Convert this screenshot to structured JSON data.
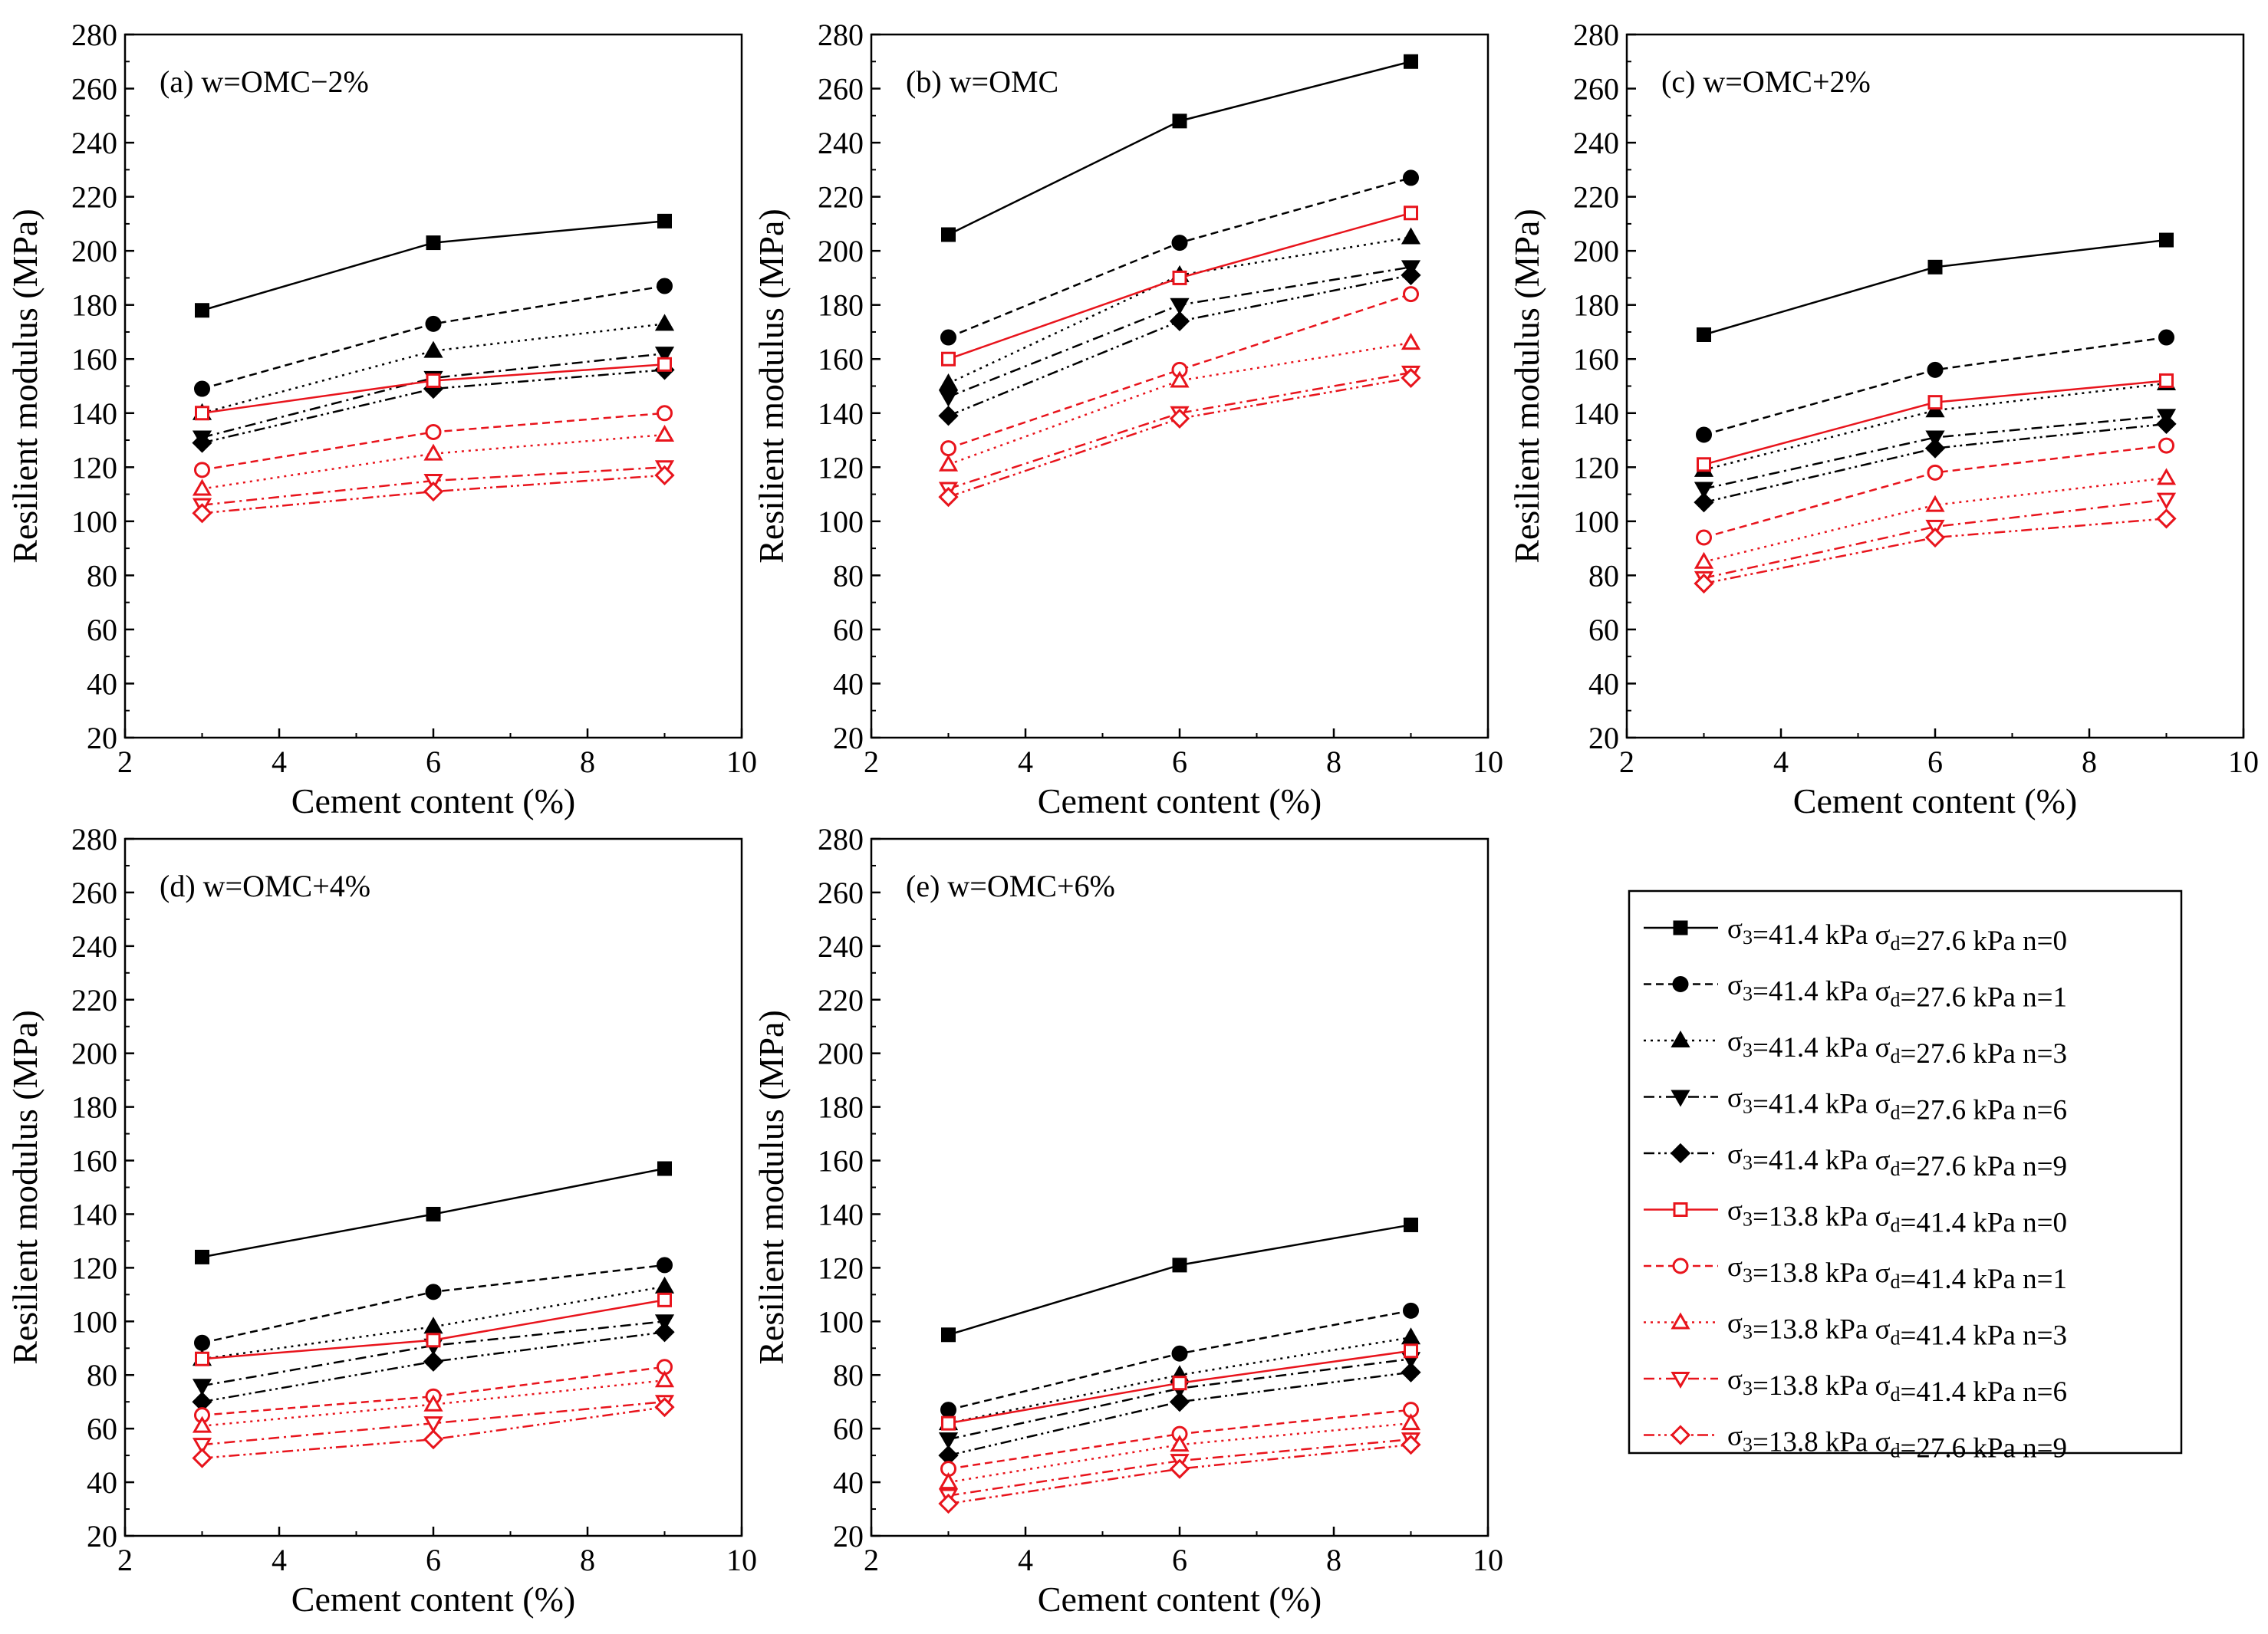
{
  "figure": {
    "xlabel": "Cement content (%)",
    "ylabel": "Resilient modulus (MPa)"
  },
  "legend": {
    "entries": [
      {
        "p1": "σ",
        "s1": "3",
        "p2": "=41.4 kPa  σ",
        "s2": "d",
        "p3": "=27.6 kPa  n=0"
      },
      {
        "p1": "σ",
        "s1": "3",
        "p2": "=41.4 kPa  σ",
        "s2": "d",
        "p3": "=27.6 kPa  n=1"
      },
      {
        "p1": "σ",
        "s1": "3",
        "p2": "=41.4 kPa  σ",
        "s2": "d",
        "p3": "=27.6 kPa  n=3"
      },
      {
        "p1": "σ",
        "s1": "3",
        "p2": "=41.4 kPa  σ",
        "s2": "d",
        "p3": "=27.6 kPa  n=6"
      },
      {
        "p1": "σ",
        "s1": "3",
        "p2": "=41.4 kPa  σ",
        "s2": "d",
        "p3": "=27.6 kPa  n=9"
      },
      {
        "p1": "σ",
        "s1": "3",
        "p2": "=13.8 kPa  σ",
        "s2": "d",
        "p3": "=41.4 kPa  n=0"
      },
      {
        "p1": "σ",
        "s1": "3",
        "p2": "=13.8 kPa  σ",
        "s2": "d",
        "p3": "=41.4 kPa  n=1"
      },
      {
        "p1": "σ",
        "s1": "3",
        "p2": "=13.8 kPa  σ",
        "s2": "d",
        "p3": "=41.4 kPa  n=3"
      },
      {
        "p1": "σ",
        "s1": "3",
        "p2": "=13.8 kPa  σ",
        "s2": "d",
        "p3": "=41.4 kPa  n=6"
      },
      {
        "p1": "σ",
        "s1": "3",
        "p2": "=13.8 kPa  σ",
        "s2": "d",
        "p3": "=27.6 kPa  n=9"
      }
    ]
  },
  "series_style": [
    {
      "color": "#000000",
      "marker": "square",
      "filled": true,
      "dash": "solid"
    },
    {
      "color": "#000000",
      "marker": "circle",
      "filled": true,
      "dash": "dashed"
    },
    {
      "color": "#000000",
      "marker": "triangle-up",
      "filled": true,
      "dash": "dotted"
    },
    {
      "color": "#000000",
      "marker": "triangle-down",
      "filled": true,
      "dash": "dashdot"
    },
    {
      "color": "#000000",
      "marker": "diamond",
      "filled": true,
      "dash": "dashdotdot"
    },
    {
      "color": "#e8141c",
      "marker": "square",
      "filled": false,
      "dash": "solid"
    },
    {
      "color": "#e8141c",
      "marker": "circle",
      "filled": false,
      "dash": "dashed"
    },
    {
      "color": "#e8141c",
      "marker": "triangle-up",
      "filled": false,
      "dash": "dotted"
    },
    {
      "color": "#e8141c",
      "marker": "triangle-down",
      "filled": false,
      "dash": "dashdot"
    },
    {
      "color": "#e8141c",
      "marker": "diamond",
      "filled": false,
      "dash": "dashdotdot"
    }
  ],
  "chart_data": [
    {
      "type": "line",
      "title": "(a) w=OMC−2%",
      "xlabel": "Cement content (%)",
      "ylabel": "Resilient modulus (MPa)",
      "xlim": [
        2,
        10
      ],
      "ylim": [
        20,
        280
      ],
      "xticks": [
        2,
        4,
        6,
        8,
        10
      ],
      "yticks": [
        20,
        40,
        60,
        80,
        100,
        120,
        140,
        160,
        180,
        200,
        220,
        240,
        260,
        280
      ],
      "x": [
        3,
        6,
        9
      ],
      "series": [
        {
          "name": "σ3=41.4 kPa σd=27.6 kPa n=0",
          "values": [
            178,
            203,
            211
          ]
        },
        {
          "name": "σ3=41.4 kPa σd=27.6 kPa n=1",
          "values": [
            149,
            173,
            187
          ]
        },
        {
          "name": "σ3=41.4 kPa σd=27.6 kPa n=3",
          "values": [
            140,
            163,
            173
          ]
        },
        {
          "name": "σ3=41.4 kPa σd=27.6 kPa n=6",
          "values": [
            131,
            153,
            162
          ]
        },
        {
          "name": "σ3=41.4 kPa σd=27.6 kPa n=9",
          "values": [
            129,
            149,
            156
          ]
        },
        {
          "name": "σ3=13.8 kPa σd=41.4 kPa n=0",
          "values": [
            140,
            152,
            158
          ]
        },
        {
          "name": "σ3=13.8 kPa σd=41.4 kPa n=1",
          "values": [
            119,
            133,
            140
          ]
        },
        {
          "name": "σ3=13.8 kPa σd=41.4 kPa n=3",
          "values": [
            112,
            125,
            132
          ]
        },
        {
          "name": "σ3=13.8 kPa σd=41.4 kPa n=6",
          "values": [
            106,
            115,
            120
          ]
        },
        {
          "name": "σ3=13.8 kPa σd=27.6 kPa n=9",
          "values": [
            103,
            111,
            117
          ]
        }
      ]
    },
    {
      "type": "line",
      "title": "(b) w=OMC",
      "xlabel": "Cement content (%)",
      "ylabel": "Resilient modulus (MPa)",
      "xlim": [
        2,
        10
      ],
      "ylim": [
        20,
        280
      ],
      "xticks": [
        2,
        4,
        6,
        8,
        10
      ],
      "yticks": [
        20,
        40,
        60,
        80,
        100,
        120,
        140,
        160,
        180,
        200,
        220,
        240,
        260,
        280
      ],
      "x": [
        3,
        6,
        9
      ],
      "series": [
        {
          "name": "σ3=41.4 kPa σd=27.6 kPa n=0",
          "values": [
            206,
            248,
            270
          ]
        },
        {
          "name": "σ3=41.4 kPa σd=27.6 kPa n=1",
          "values": [
            168,
            203,
            227
          ]
        },
        {
          "name": "σ3=41.4 kPa σd=27.6 kPa n=3",
          "values": [
            151,
            191,
            205
          ]
        },
        {
          "name": "σ3=41.4 kPa σd=27.6 kPa n=6",
          "values": [
            146,
            180,
            194
          ]
        },
        {
          "name": "σ3=41.4 kPa σd=27.6 kPa n=9",
          "values": [
            139,
            174,
            191
          ]
        },
        {
          "name": "σ3=13.8 kPa σd=41.4 kPa n=0",
          "values": [
            160,
            190,
            214
          ]
        },
        {
          "name": "σ3=13.8 kPa σd=41.4 kPa n=1",
          "values": [
            127,
            156,
            184
          ]
        },
        {
          "name": "σ3=13.8 kPa σd=41.4 kPa n=3",
          "values": [
            121,
            152,
            166
          ]
        },
        {
          "name": "σ3=13.8 kPa σd=41.4 kPa n=6",
          "values": [
            112,
            140,
            155
          ]
        },
        {
          "name": "σ3=13.8 kPa σd=27.6 kPa n=9",
          "values": [
            109,
            138,
            153
          ]
        }
      ]
    },
    {
      "type": "line",
      "title": "(c) w=OMC+2%",
      "xlabel": "Cement content (%)",
      "ylabel": "Resilient modulus (MPa)",
      "xlim": [
        2,
        10
      ],
      "ylim": [
        20,
        280
      ],
      "xticks": [
        2,
        4,
        6,
        8,
        10
      ],
      "yticks": [
        20,
        40,
        60,
        80,
        100,
        120,
        140,
        160,
        180,
        200,
        220,
        240,
        260,
        280
      ],
      "x": [
        3,
        6,
        9
      ],
      "series": [
        {
          "name": "σ3=41.4 kPa σd=27.6 kPa n=0",
          "values": [
            169,
            194,
            204
          ]
        },
        {
          "name": "σ3=41.4 kPa σd=27.6 kPa n=1",
          "values": [
            132,
            156,
            168
          ]
        },
        {
          "name": "σ3=41.4 kPa σd=27.6 kPa n=3",
          "values": [
            119,
            141,
            151
          ]
        },
        {
          "name": "σ3=41.4 kPa σd=27.6 kPa n=6",
          "values": [
            112,
            131,
            139
          ]
        },
        {
          "name": "σ3=41.4 kPa σd=27.6 kPa n=9",
          "values": [
            107,
            127,
            136
          ]
        },
        {
          "name": "σ3=13.8 kPa σd=41.4 kPa n=0",
          "values": [
            121,
            144,
            152
          ]
        },
        {
          "name": "σ3=13.8 kPa σd=41.4 kPa n=1",
          "values": [
            94,
            118,
            128
          ]
        },
        {
          "name": "σ3=13.8 kPa σd=41.4 kPa n=3",
          "values": [
            85,
            106,
            116
          ]
        },
        {
          "name": "σ3=13.8 kPa σd=41.4 kPa n=6",
          "values": [
            79,
            98,
            108
          ]
        },
        {
          "name": "σ3=13.8 kPa σd=27.6 kPa n=9",
          "values": [
            77,
            94,
            101
          ]
        }
      ]
    },
    {
      "type": "line",
      "title": "(d) w=OMC+4%",
      "xlabel": "Cement content (%)",
      "ylabel": "Resilient modulus (MPa)",
      "xlim": [
        2,
        10
      ],
      "ylim": [
        20,
        280
      ],
      "xticks": [
        2,
        4,
        6,
        8,
        10
      ],
      "yticks": [
        20,
        40,
        60,
        80,
        100,
        120,
        140,
        160,
        180,
        200,
        220,
        240,
        260,
        280
      ],
      "x": [
        3,
        6,
        9
      ],
      "series": [
        {
          "name": "σ3=41.4 kPa σd=27.6 kPa n=0",
          "values": [
            124,
            140,
            157
          ]
        },
        {
          "name": "σ3=41.4 kPa σd=27.6 kPa n=1",
          "values": [
            92,
            111,
            121
          ]
        },
        {
          "name": "σ3=41.4 kPa σd=27.6 kPa n=3",
          "values": [
            86,
            98,
            113
          ]
        },
        {
          "name": "σ3=41.4 kPa σd=27.6 kPa n=6",
          "values": [
            76,
            91,
            100
          ]
        },
        {
          "name": "σ3=41.4 kPa σd=27.6 kPa n=9",
          "values": [
            70,
            85,
            96
          ]
        },
        {
          "name": "σ3=13.8 kPa σd=41.4 kPa n=0",
          "values": [
            86,
            93,
            108
          ]
        },
        {
          "name": "σ3=13.8 kPa σd=41.4 kPa n=1",
          "values": [
            65,
            72,
            83
          ]
        },
        {
          "name": "σ3=13.8 kPa σd=41.4 kPa n=3",
          "values": [
            61,
            69,
            78
          ]
        },
        {
          "name": "σ3=13.8 kPa σd=41.4 kPa n=6",
          "values": [
            54,
            62,
            70
          ]
        },
        {
          "name": "σ3=13.8 kPa σd=27.6 kPa n=9",
          "values": [
            49,
            56,
            68
          ]
        }
      ]
    },
    {
      "type": "line",
      "title": "(e) w=OMC+6%",
      "xlabel": "Cement content (%)",
      "ylabel": "Resilient modulus (MPa)",
      "xlim": [
        2,
        10
      ],
      "ylim": [
        20,
        280
      ],
      "xticks": [
        2,
        4,
        6,
        8,
        10
      ],
      "yticks": [
        20,
        40,
        60,
        80,
        100,
        120,
        140,
        160,
        180,
        200,
        220,
        240,
        260,
        280
      ],
      "x": [
        3,
        6,
        9
      ],
      "series": [
        {
          "name": "σ3=41.4 kPa σd=27.6 kPa n=0",
          "values": [
            95,
            121,
            136
          ]
        },
        {
          "name": "σ3=41.4 kPa σd=27.6 kPa n=1",
          "values": [
            67,
            88,
            104
          ]
        },
        {
          "name": "σ3=41.4 kPa σd=27.6 kPa n=3",
          "values": [
            62,
            80,
            94
          ]
        },
        {
          "name": "σ3=41.4 kPa σd=27.6 kPa n=6",
          "values": [
            56,
            75,
            86
          ]
        },
        {
          "name": "σ3=41.4 kPa σd=27.6 kPa n=9",
          "values": [
            50,
            70,
            81
          ]
        },
        {
          "name": "σ3=13.8 kPa σd=41.4 kPa n=0",
          "values": [
            62,
            77,
            89
          ]
        },
        {
          "name": "σ3=13.8 kPa σd=41.4 kPa n=1",
          "values": [
            45,
            58,
            67
          ]
        },
        {
          "name": "σ3=13.8 kPa σd=41.4 kPa n=3",
          "values": [
            40,
            54,
            62
          ]
        },
        {
          "name": "σ3=13.8 kPa σd=41.4 kPa n=6",
          "values": [
            35,
            48,
            56
          ]
        },
        {
          "name": "σ3=13.8 kPa σd=27.6 kPa n=9",
          "values": [
            32,
            45,
            54
          ]
        }
      ]
    }
  ]
}
